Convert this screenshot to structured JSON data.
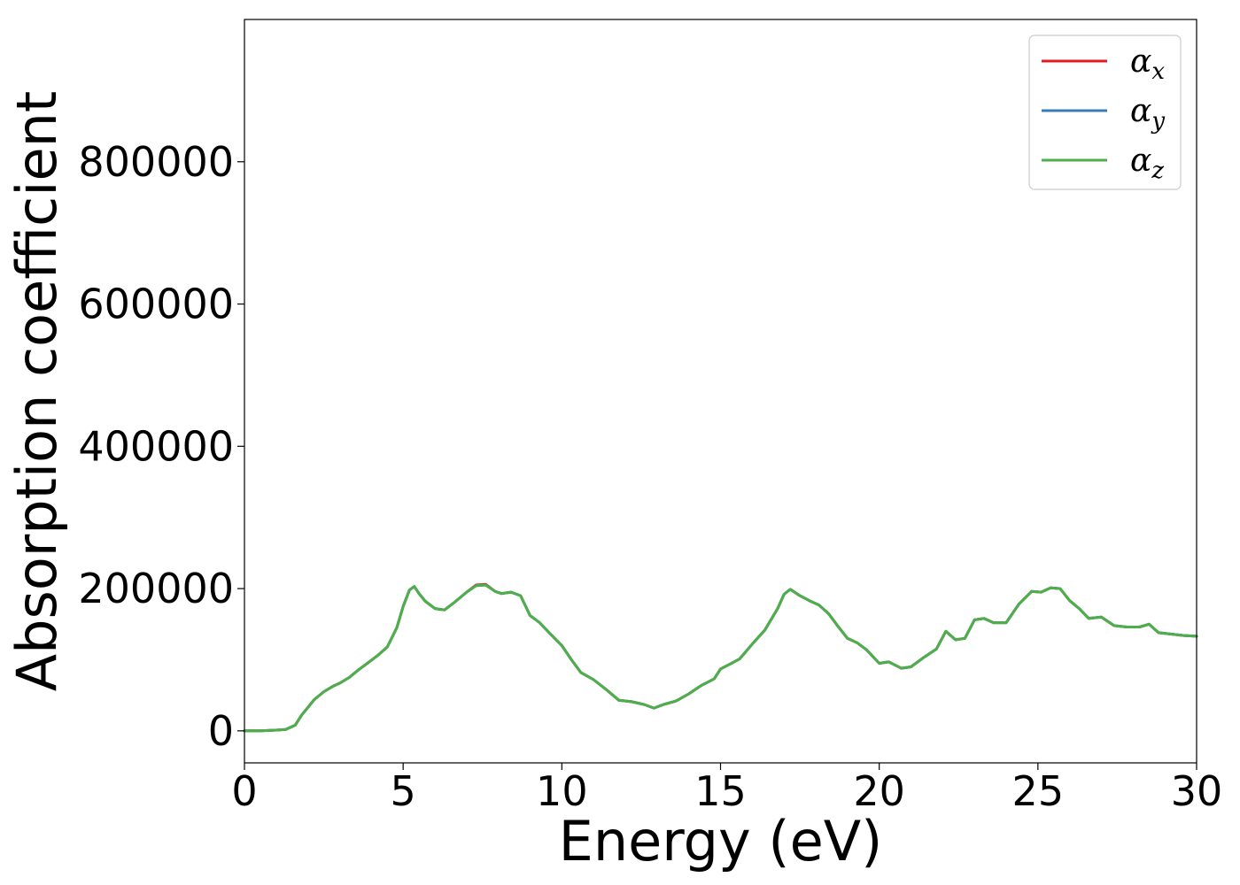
{
  "chart_data": {
    "type": "line",
    "title": "",
    "xlabel": "Energy (eV)",
    "ylabel": "Absorption coefficient",
    "xlim": [
      0,
      30
    ],
    "ylim": [
      -45000,
      1000000
    ],
    "xticks": [
      0,
      5,
      10,
      15,
      20,
      25,
      30
    ],
    "yticks": [
      0,
      200000,
      400000,
      600000,
      800000
    ],
    "xtick_labels": [
      "0",
      "5",
      "10",
      "15",
      "20",
      "25",
      "30"
    ],
    "ytick_labels": [
      "0",
      "200000",
      "400000",
      "600000",
      "800000"
    ],
    "grid": false,
    "legend_position": "top-right",
    "x": [
      0,
      0.5,
      1.0,
      1.3,
      1.6,
      1.8,
      2.0,
      2.2,
      2.5,
      2.8,
      3.0,
      3.3,
      3.6,
      3.9,
      4.2,
      4.5,
      4.8,
      5.0,
      5.2,
      5.35,
      5.5,
      5.7,
      6.0,
      6.3,
      6.6,
      7.0,
      7.3,
      7.6,
      7.9,
      8.1,
      8.4,
      8.7,
      9.0,
      9.3,
      9.6,
      10.0,
      10.3,
      10.6,
      11.0,
      11.4,
      11.8,
      12.2,
      12.6,
      12.9,
      13.2,
      13.6,
      14.0,
      14.4,
      14.8,
      15.0,
      15.3,
      15.6,
      16.0,
      16.4,
      16.8,
      17.0,
      17.2,
      17.5,
      17.8,
      18.1,
      18.4,
      18.7,
      19.0,
      19.3,
      19.6,
      20.0,
      20.3,
      20.7,
      21.0,
      21.4,
      21.8,
      22.1,
      22.4,
      22.7,
      23.0,
      23.3,
      23.6,
      24.0,
      24.4,
      24.8,
      25.1,
      25.4,
      25.7,
      26.0,
      26.3,
      26.6,
      27.0,
      27.4,
      27.8,
      28.2,
      28.5,
      28.8,
      29.2,
      29.6,
      30.0
    ],
    "series": [
      {
        "name": "α_x",
        "color": "#e41a1c",
        "values": [
          0,
          0,
          1000,
          2000,
          8000,
          22000,
          33000,
          44000,
          55000,
          63000,
          67000,
          75000,
          86000,
          96000,
          106000,
          118000,
          145000,
          175000,
          198000,
          203000,
          193000,
          182000,
          172000,
          170000,
          180000,
          195000,
          205000,
          206000,
          196000,
          193000,
          195000,
          190000,
          162000,
          152000,
          138000,
          120000,
          100000,
          82000,
          72000,
          58000,
          43000,
          41000,
          37000,
          32000,
          37000,
          42000,
          52000,
          64000,
          73000,
          87000,
          94000,
          101000,
          122000,
          142000,
          172000,
          192000,
          199000,
          190000,
          183000,
          177000,
          165000,
          147000,
          130000,
          124000,
          114000,
          95000,
          97000,
          88000,
          90000,
          103000,
          115000,
          140000,
          128000,
          130000,
          156000,
          158000,
          152000,
          152000,
          178000,
          196000,
          195000,
          201000,
          200000,
          183000,
          172000,
          158000,
          160000,
          148000,
          146000,
          146000,
          150000,
          138000,
          136000,
          134000,
          133000
        ]
      },
      {
        "name": "α_y",
        "color": "#377eb8",
        "values": [
          0,
          0,
          1000,
          2000,
          8000,
          22000,
          33000,
          44000,
          55000,
          63000,
          67000,
          75000,
          86000,
          96000,
          106000,
          118000,
          145000,
          175000,
          198000,
          203000,
          193000,
          182000,
          172000,
          170000,
          180000,
          195000,
          204000,
          205000,
          196000,
          193000,
          195000,
          190000,
          162000,
          152000,
          138000,
          120000,
          100000,
          82000,
          72000,
          58000,
          43000,
          41000,
          37000,
          32000,
          37000,
          42000,
          52000,
          64000,
          73000,
          87000,
          94000,
          101000,
          122000,
          142000,
          172000,
          192000,
          199000,
          190000,
          183000,
          177000,
          165000,
          147000,
          130000,
          124000,
          114000,
          95000,
          97000,
          88000,
          90000,
          103000,
          115000,
          140000,
          128000,
          130000,
          156000,
          158000,
          152000,
          152000,
          178000,
          196000,
          195000,
          201000,
          200000,
          183000,
          172000,
          158000,
          160000,
          148000,
          146000,
          146000,
          150000,
          138000,
          136000,
          134000,
          133000
        ]
      },
      {
        "name": "α_z",
        "color": "#4daf4a",
        "values": [
          0,
          0,
          1000,
          2000,
          8000,
          22000,
          33000,
          44000,
          55000,
          63000,
          67000,
          75000,
          86000,
          96000,
          106000,
          118000,
          145000,
          175000,
          198000,
          203000,
          193000,
          182000,
          172000,
          170000,
          180000,
          195000,
          204000,
          205000,
          196000,
          193000,
          195000,
          190000,
          162000,
          152000,
          138000,
          120000,
          100000,
          82000,
          72000,
          58000,
          43000,
          41000,
          37000,
          32000,
          37000,
          42000,
          52000,
          64000,
          73000,
          87000,
          94000,
          101000,
          122000,
          142000,
          172000,
          192000,
          199000,
          190000,
          183000,
          177000,
          165000,
          147000,
          130000,
          124000,
          114000,
          95000,
          97000,
          88000,
          90000,
          103000,
          115000,
          140000,
          128000,
          130000,
          156000,
          158000,
          152000,
          152000,
          178000,
          196000,
          195000,
          201000,
          200000,
          183000,
          172000,
          158000,
          160000,
          148000,
          146000,
          146000,
          150000,
          138000,
          136000,
          134000,
          133000
        ]
      }
    ],
    "legend": [
      {
        "symbol": "α",
        "sub": "x",
        "color": "#e41a1c"
      },
      {
        "symbol": "α",
        "sub": "y",
        "color": "#377eb8"
      },
      {
        "symbol": "α",
        "sub": "z",
        "color": "#4daf4a"
      }
    ]
  }
}
